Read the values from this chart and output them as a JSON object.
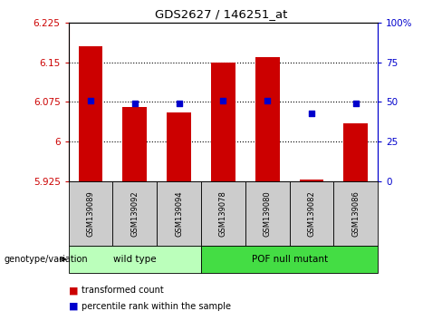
{
  "title": "GDS2627 / 146251_at",
  "samples": [
    "GSM139089",
    "GSM139092",
    "GSM139094",
    "GSM139078",
    "GSM139080",
    "GSM139082",
    "GSM139086"
  ],
  "bar_values": [
    6.18,
    6.065,
    6.055,
    6.15,
    6.16,
    5.928,
    6.035
  ],
  "percentile_values": [
    51,
    49,
    49,
    51,
    51,
    43,
    49
  ],
  "bar_bottom": 5.925,
  "ylim_left": [
    5.925,
    6.225
  ],
  "ylim_right": [
    0,
    100
  ],
  "yticks_left": [
    5.925,
    6.0,
    6.075,
    6.15,
    6.225
  ],
  "yticks_right": [
    0,
    25,
    50,
    75,
    100
  ],
  "ytick_labels_left": [
    "5.925",
    "6",
    "6.075",
    "6.15",
    "6.225"
  ],
  "ytick_labels_right": [
    "0",
    "25",
    "50",
    "75",
    "100%"
  ],
  "hlines": [
    6.0,
    6.075,
    6.15
  ],
  "bar_color": "#cc0000",
  "percentile_color": "#0000cc",
  "groups": [
    {
      "label": "wild type",
      "indices": [
        0,
        1,
        2
      ],
      "color": "#bbffbb"
    },
    {
      "label": "POF null mutant",
      "indices": [
        3,
        4,
        5,
        6
      ],
      "color": "#44dd44"
    }
  ],
  "group_label": "genotype/variation",
  "legend_bar": "transformed count",
  "legend_pct": "percentile rank within the sample",
  "bar_width": 0.55
}
